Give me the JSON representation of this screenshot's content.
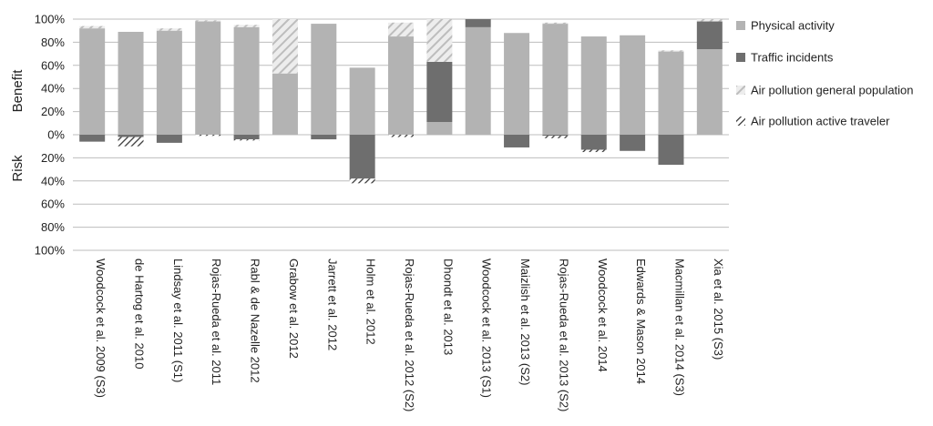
{
  "chart_data": {
    "type": "bar",
    "stacked": true,
    "axis_titles": {
      "upper": "Benefit",
      "lower": "Risk"
    },
    "ylim": [
      -100,
      100
    ],
    "y_ticks": [
      {
        "value": 100,
        "label": "100%"
      },
      {
        "value": 80,
        "label": "80%"
      },
      {
        "value": 60,
        "label": "60%"
      },
      {
        "value": 40,
        "label": "40%"
      },
      {
        "value": 20,
        "label": "20%"
      },
      {
        "value": 0,
        "label": "0%"
      },
      {
        "value": -20,
        "label": "20%"
      },
      {
        "value": -40,
        "label": "40%"
      },
      {
        "value": -60,
        "label": "60%"
      },
      {
        "value": -80,
        "label": "80%"
      },
      {
        "value": -100,
        "label": "100%"
      }
    ],
    "grid": true,
    "legend_position": "right",
    "categories": [
      "Woodcock et al. 2009 (S3)",
      "de Hartog et al. 2010",
      "Lindsay et al. 2011 (S1)",
      "Rojas-Rueda et al. 2011",
      "Rabl & de Nazelle 2012",
      "Grabow et al. 2012",
      "Jarrett et al. 2012",
      "Holm et al. 2012",
      "Rojas-Rueda et al. 2012 (S2)",
      "Dhondt et al. 2013",
      "Woodcock et al. 2013 (S1)",
      "Maizlish et al. 2013 (S2)",
      "Rojas-Rueda et al. 2013 (S2)",
      "Woodcock et al. 2014",
      "Edwards & Mason 2014",
      "Macmillan et al. 2014 (S3)",
      "Xia et al. 2015 (S3)"
    ],
    "series": [
      {
        "name": "Physical activity",
        "color": "#b3b3b3",
        "pattern": "solid",
        "values": [
          92,
          89,
          90,
          98,
          93,
          53,
          96,
          58,
          85,
          11,
          93,
          88,
          96,
          85,
          86,
          72,
          74
        ]
      },
      {
        "name": "Traffic incidents",
        "color": "#6e6e6e",
        "pattern": "solid",
        "values": [
          -6,
          -2,
          -7,
          0,
          -4,
          0,
          -4,
          -38,
          0,
          52,
          7,
          -11,
          -1,
          -13,
          -14,
          -26,
          24
        ]
      },
      {
        "name": "Air pollution general population",
        "color": "#c4c4c4",
        "pattern": "hatch-light",
        "values": [
          2,
          0,
          2,
          1,
          2,
          47,
          0,
          0,
          12,
          37,
          0,
          0,
          1,
          0,
          0,
          1,
          2
        ]
      },
      {
        "name": "Air pollution active traveler",
        "color": "#333333",
        "pattern": "hatch-dark",
        "values": [
          0,
          -8,
          0,
          -1,
          -1,
          0,
          0,
          -4,
          -2,
          0,
          0,
          0,
          -2,
          -2,
          0,
          0,
          0
        ]
      }
    ]
  }
}
